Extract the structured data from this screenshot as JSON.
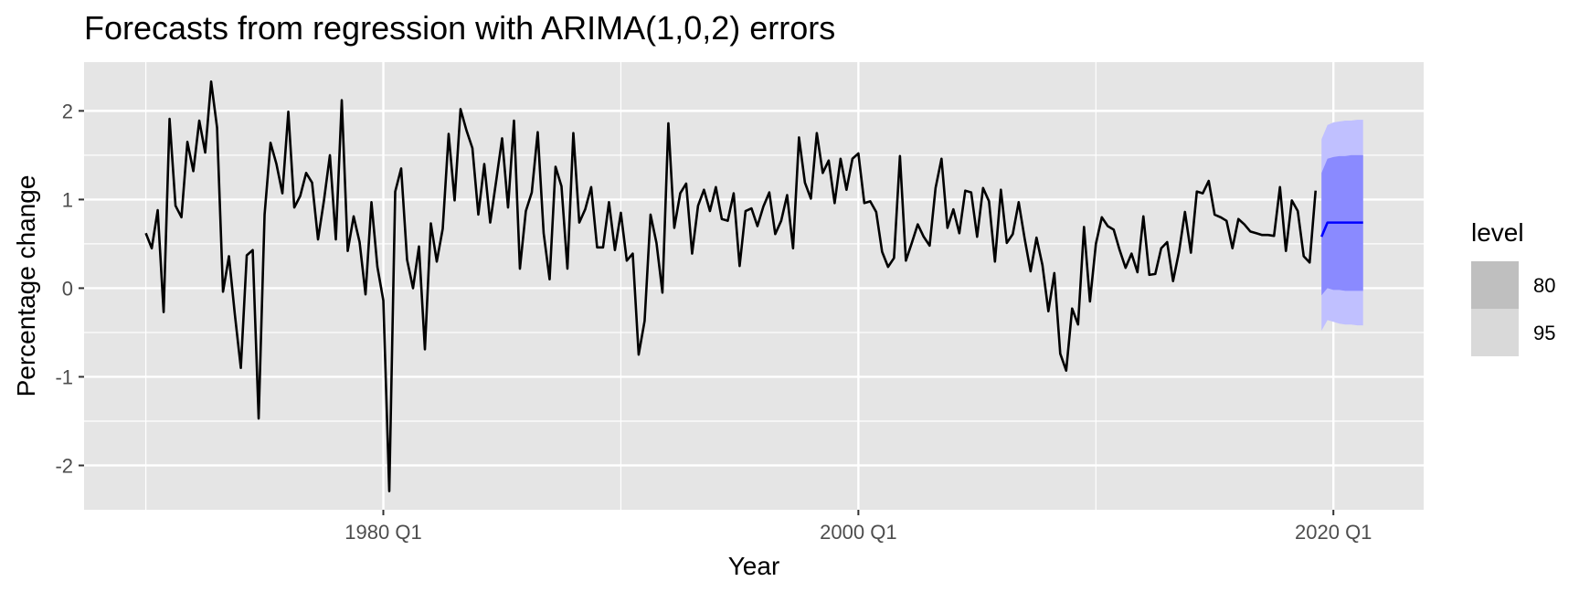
{
  "colors": {
    "panel_bg": "#e5e5e5",
    "grid": "#ffffff",
    "series_line": "#000000",
    "forecast_line": "#0000ff",
    "band_80": "#8a8aff",
    "band_95": "#c0c0ff",
    "legend_key_80": "#bfbfbf",
    "legend_key_95": "#d9d9d9",
    "tick_text": "#4d4d4d"
  },
  "chart_data": {
    "type": "line",
    "title": "Forecasts from regression with ARIMA(1,0,2) errors",
    "xlabel": "Year",
    "ylabel": "Percentage change",
    "xlim": [
      1967.4,
      2023.8
    ],
    "ylim": [
      -2.5,
      2.55
    ],
    "x_ticks": [
      {
        "value": 1980,
        "label": "1980 Q1"
      },
      {
        "value": 2000,
        "label": "2000 Q1"
      },
      {
        "value": 2020,
        "label": "2020 Q1"
      }
    ],
    "x_minor_ticks": [
      1970,
      1990,
      2010
    ],
    "y_ticks": [
      {
        "value": -2,
        "label": "-2"
      },
      {
        "value": -1,
        "label": "-1"
      },
      {
        "value": 0,
        "label": "0"
      },
      {
        "value": 1,
        "label": "1"
      },
      {
        "value": 2,
        "label": "2"
      }
    ],
    "y_minor_ticks": [
      -1.5,
      -0.5,
      0.5,
      1.5
    ],
    "grid": true,
    "series": [
      {
        "start": 1970,
        "step": 0.25,
        "values": [
          0.62,
          0.45,
          0.88,
          -0.27,
          1.91,
          0.93,
          0.8,
          1.65,
          1.32,
          1.89,
          1.53,
          2.33,
          1.81,
          -0.04,
          0.36,
          -0.3,
          -0.9,
          0.37,
          0.43,
          -1.47,
          0.83,
          1.64,
          1.4,
          1.07,
          1.99,
          0.91,
          1.04,
          1.3,
          1.19,
          0.55,
          0.99,
          1.5,
          0.55,
          2.12,
          0.42,
          0.81,
          0.52,
          -0.07,
          0.97,
          0.24,
          -0.14,
          -2.29,
          1.09,
          1.35,
          0.32,
          0.0,
          0.47,
          -0.69,
          0.73,
          0.3,
          0.67,
          1.74,
          0.99,
          2.02,
          1.78,
          1.58,
          0.83,
          1.4,
          0.74,
          1.21,
          1.69,
          0.91,
          1.89,
          0.22,
          0.87,
          1.08,
          1.76,
          0.62,
          0.1,
          1.37,
          1.15,
          0.22,
          1.75,
          0.74,
          0.89,
          1.14,
          0.46,
          0.46,
          0.97,
          0.43,
          0.85,
          0.31,
          0.39,
          -0.75,
          -0.37,
          0.83,
          0.51,
          -0.05,
          1.86,
          0.68,
          1.07,
          1.18,
          0.39,
          0.93,
          1.11,
          0.87,
          1.14,
          0.78,
          0.76,
          1.07,
          0.25,
          0.87,
          0.9,
          0.7,
          0.92,
          1.08,
          0.61,
          0.76,
          1.05,
          0.45,
          1.7,
          1.19,
          1.01,
          1.75,
          1.3,
          1.44,
          0.96,
          1.46,
          1.11,
          1.46,
          1.52,
          0.96,
          0.98,
          0.86,
          0.41,
          0.24,
          0.34,
          1.49,
          0.31,
          0.51,
          0.72,
          0.58,
          0.48,
          1.13,
          1.46,
          0.68,
          0.89,
          0.62,
          1.1,
          1.08,
          0.58,
          1.13,
          0.98,
          0.3,
          1.11,
          0.51,
          0.61,
          0.97,
          0.56,
          0.19,
          0.57,
          0.26,
          -0.26,
          0.17,
          -0.74,
          -0.93,
          -0.23,
          -0.41,
          0.69,
          -0.15,
          0.5,
          0.8,
          0.7,
          0.66,
          0.43,
          0.23,
          0.39,
          0.18,
          0.81,
          0.15,
          0.16,
          0.45,
          0.52,
          0.08,
          0.41,
          0.86,
          0.4,
          1.09,
          1.07,
          1.21,
          0.83,
          0.8,
          0.76,
          0.45,
          0.78,
          0.72,
          0.64,
          0.62,
          0.6,
          0.6,
          0.59,
          1.14,
          0.42,
          0.99,
          0.87,
          0.36,
          0.29,
          1.1
        ]
      }
    ],
    "forecast": {
      "x": [
        2019.5,
        2019.75,
        2020.0,
        2020.25,
        2020.5,
        2020.75,
        2021.0,
        2021.25
      ],
      "mean": [
        0.58,
        0.74,
        0.74,
        0.74,
        0.74,
        0.74,
        0.74,
        0.74
      ],
      "lo80": [
        -0.08,
        0.0,
        -0.02,
        -0.02,
        -0.03,
        -0.03,
        -0.03,
        -0.03
      ],
      "hi80": [
        1.3,
        1.46,
        1.48,
        1.49,
        1.49,
        1.5,
        1.5,
        1.5
      ],
      "lo95": [
        -0.48,
        -0.36,
        -0.38,
        -0.4,
        -0.41,
        -0.41,
        -0.42,
        -0.42
      ],
      "hi95": [
        1.68,
        1.84,
        1.87,
        1.88,
        1.89,
        1.89,
        1.9,
        1.9
      ]
    },
    "legend": {
      "title": "level",
      "position": "right",
      "items": [
        {
          "label": "80",
          "color": "#bfbfbf"
        },
        {
          "label": "95",
          "color": "#d9d9d9"
        }
      ]
    }
  }
}
